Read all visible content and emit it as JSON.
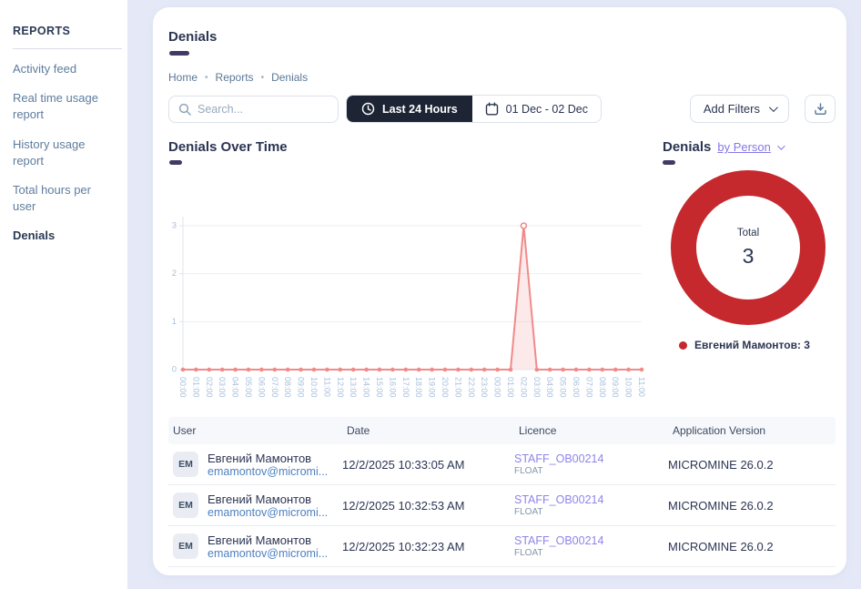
{
  "colors": {
    "accent_purple": "#413a66",
    "link_purple": "#8478e8",
    "donut_red": "#c5292e",
    "line_salmon": "#f18a8a",
    "dark_text": "#2b3452",
    "sidebar_link": "#5e7c9e",
    "chart_tick": "#a7c0dc",
    "email_blue": "#4e80c0"
  },
  "icons": [
    "search-icon",
    "clock-icon",
    "calendar-icon",
    "chevron-down-icon",
    "download-icon",
    "legend-dot"
  ],
  "sidebar": {
    "title": "REPORTS",
    "items": [
      {
        "label": "Activity feed",
        "active": false
      },
      {
        "label": "Real time usage report",
        "active": false
      },
      {
        "label": "History usage report",
        "active": false
      },
      {
        "label": "Total hours per user",
        "active": false
      },
      {
        "label": "Denials",
        "active": true
      }
    ]
  },
  "header": {
    "title": "Denials",
    "breadcrumb": [
      "Home",
      "Reports",
      "Denials"
    ]
  },
  "toolbar": {
    "search_placeholder": "Search...",
    "range_button_label": "Last 24 Hours",
    "date_range_label": "01 Dec - 02 Dec",
    "add_filters_label": "Add Filters"
  },
  "charts": {
    "line": {
      "title": "Denials Over Time"
    },
    "donut": {
      "title": "Denials",
      "mode_link": "by Person",
      "center_label": "Total",
      "center_value": "3",
      "legend": "Евгений Мамонтов: 3"
    }
  },
  "chart_data": [
    {
      "type": "line",
      "title": "Denials Over Time",
      "x": [
        "00:00",
        "01:00",
        "02:00",
        "03:00",
        "04:00",
        "05:00",
        "06:00",
        "07:00",
        "08:00",
        "09:00",
        "10:00",
        "11:00",
        "12:00",
        "13:00",
        "14:00",
        "15:00",
        "16:00",
        "17:00",
        "18:00",
        "19:00",
        "20:00",
        "21:00",
        "22:00",
        "23:00",
        "00:00",
        "01:00",
        "02:00",
        "03:00",
        "04:00",
        "05:00",
        "06:00",
        "07:00",
        "08:00",
        "09:00",
        "10:00",
        "11:00"
      ],
      "series": [
        {
          "name": "Denials",
          "values": [
            0,
            0,
            0,
            0,
            0,
            0,
            0,
            0,
            0,
            0,
            0,
            0,
            0,
            0,
            0,
            0,
            0,
            0,
            0,
            0,
            0,
            0,
            0,
            0,
            0,
            0,
            3,
            0,
            0,
            0,
            0,
            0,
            0,
            0,
            0,
            0
          ]
        }
      ],
      "ylim": [
        0,
        3
      ],
      "yticks": [
        0,
        1,
        2,
        3
      ],
      "grid": true,
      "legend_position": "none",
      "line_color": "#f18a8a",
      "fill_color": "rgba(241,138,138,0.18)",
      "tick_color": "#a7c0dc"
    },
    {
      "type": "pie",
      "title": "Denials by Person",
      "labels": [
        "Евгений Мамонтов"
      ],
      "values": [
        3
      ],
      "colors": [
        "#c5292e"
      ],
      "total_label": "Total",
      "total": 3,
      "legend": [
        "Евгений Мамонтов: 3"
      ],
      "legend_position": "bottom"
    }
  ],
  "table": {
    "columns": [
      "User",
      "Date",
      "Licence",
      "Application Version"
    ],
    "rows": [
      {
        "initials": "EM",
        "name": "Евгений Мамонтов",
        "email": "emamontov@micromi...",
        "date": "12/2/2025 10:33:05 AM",
        "licence": "STAFF_OB00214",
        "licence_type": "FLOAT",
        "version": "MICROMINE 26.0.2"
      },
      {
        "initials": "EM",
        "name": "Евгений Мамонтов",
        "email": "emamontov@micromi...",
        "date": "12/2/2025 10:32:53 AM",
        "licence": "STAFF_OB00214",
        "licence_type": "FLOAT",
        "version": "MICROMINE 26.0.2"
      },
      {
        "initials": "EM",
        "name": "Евгений Мамонтов",
        "email": "emamontov@micromi...",
        "date": "12/2/2025 10:32:23 AM",
        "licence": "STAFF_OB00214",
        "licence_type": "FLOAT",
        "version": "MICROMINE 26.0.2"
      }
    ]
  }
}
